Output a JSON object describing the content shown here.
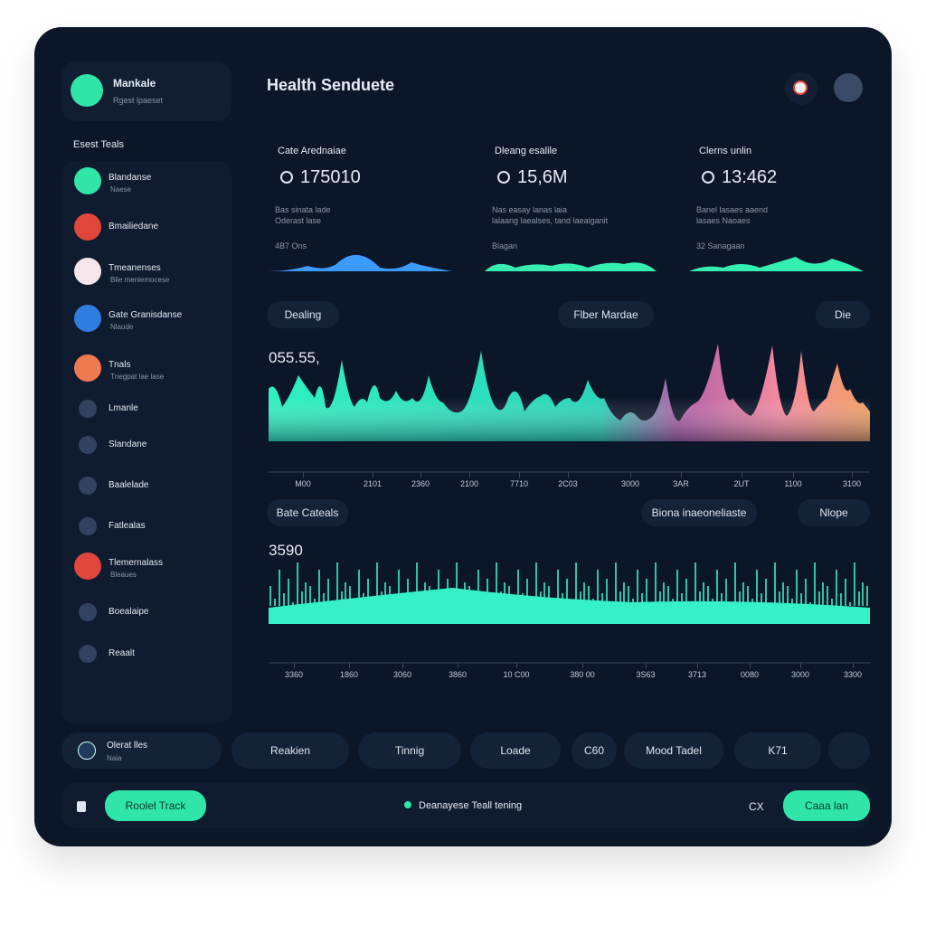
{
  "profile": {
    "name": "Mankale",
    "subtitle": "Rgest lpaeset"
  },
  "sidebar": {
    "heading": "Esest Teals",
    "items": [
      {
        "label": "Blandanse",
        "sub": "Naese"
      },
      {
        "label": "Bmailiedane"
      },
      {
        "label": "Tmeanenses",
        "sub": "Blie menlemocese"
      },
      {
        "label": "Gate Granisdanse",
        "sub": "Nlaode"
      },
      {
        "label": "Tnals",
        "sub": "Tnegpat lae lase"
      },
      {
        "label": "Lmanle"
      },
      {
        "label": "Slandane"
      },
      {
        "label": "Baalelade"
      },
      {
        "label": "Fatlealas"
      },
      {
        "label": "Tlemernalass",
        "sub": "Bleaues"
      },
      {
        "label": "Boealaipe"
      },
      {
        "label": "Reaalt"
      }
    ]
  },
  "header": {
    "title": "Health Senduete"
  },
  "cards": [
    {
      "title": "Cate Arednaiae",
      "value": "175010",
      "line1": "Bas sinata lade",
      "line2": "Oderast lase",
      "foot": "4B7 Ons"
    },
    {
      "title": "Dleang esalile",
      "value": "15,6M",
      "line1": "Nas easay lanas laia",
      "line2": "lalaang laealses, tand laeaiganit",
      "foot": "Blagan"
    },
    {
      "title": "Clerns unlin",
      "value": "13:462",
      "line1": "Banel lasaes aaend",
      "line2": "lasaes Naoaes",
      "foot": "32 Sanagaan"
    }
  ],
  "panels": [
    {
      "pills": [
        "Dealing",
        "Flber Mardae",
        "Die"
      ],
      "value": "055.55,",
      "x_labels": [
        "M00",
        "2101",
        "2360",
        "2100",
        "7710",
        "2C03",
        "3000",
        "3AR",
        "2UT",
        "1100",
        "3100"
      ]
    },
    {
      "pills": [
        "Bate Cateals",
        "Biona inaeoneliaste",
        "Nlope"
      ],
      "value": "3590",
      "x_labels": [
        "3360",
        "1860",
        "3060",
        "3860",
        "10 C00",
        "380 00",
        "3S63",
        "3713",
        "0080",
        "3000",
        "3300"
      ]
    }
  ],
  "toolbar": {
    "first": {
      "label": "Olerat lles",
      "sub": "Naia"
    },
    "items": [
      "Reakien",
      "Tinnig",
      "Loade",
      "C60",
      "Mood Tadel",
      "K71"
    ]
  },
  "footer": {
    "left_button": "Roolel Track",
    "status": "Deanayese Teall tening",
    "icon_text": "CX",
    "right_button": "Caaa lan"
  }
}
